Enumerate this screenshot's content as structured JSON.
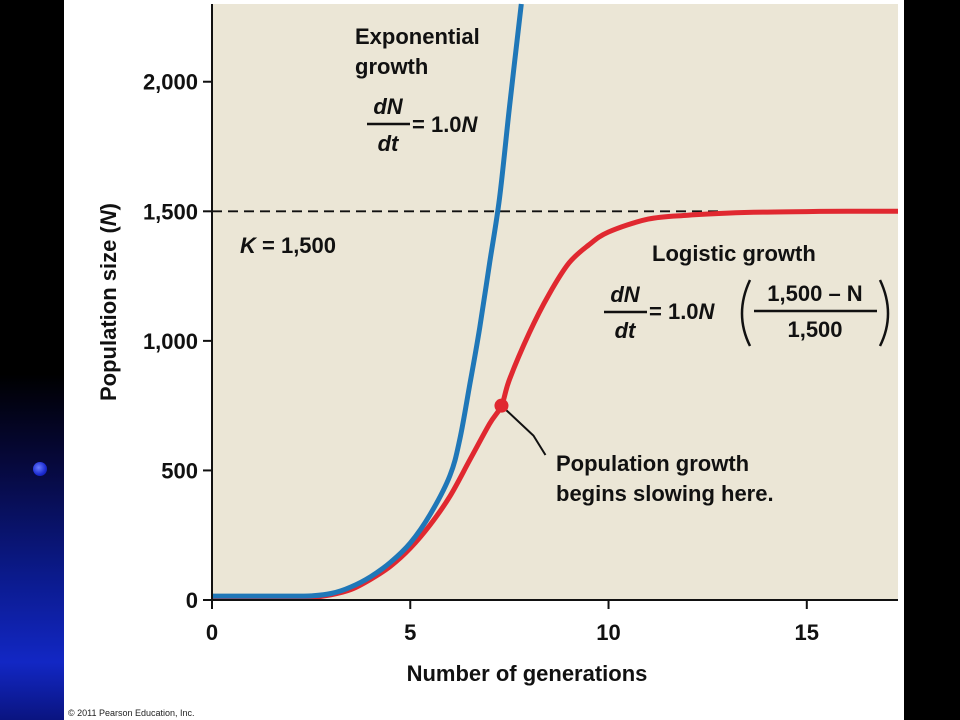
{
  "chart_data": {
    "type": "line",
    "xlabel": "Number of generations",
    "ylabel_prefix": "Population size (",
    "ylabel_var": "N",
    "ylabel_suffix": ")",
    "xlim": [
      0,
      17.3
    ],
    "ylim": [
      0,
      2300
    ],
    "x_ticks": [
      0,
      5,
      10,
      15
    ],
    "x_tick_labels": [
      "0",
      "5",
      "10",
      "15"
    ],
    "y_ticks": [
      0,
      500,
      1000,
      1500,
      2000
    ],
    "y_tick_labels": [
      "0",
      "500",
      "1,000",
      "1,500",
      "2,000"
    ],
    "grid": false,
    "series": [
      {
        "name": "Exponential growth",
        "color": "#1f77b8",
        "x": [
          0,
          1,
          2,
          2.5,
          3,
          3.5,
          4,
          4.5,
          5,
          5.5,
          6,
          6.25,
          6.5,
          6.75,
          7,
          7.25,
          7.5,
          7.8
        ],
        "y": [
          15,
          15,
          15,
          16,
          25,
          50,
          90,
          145,
          220,
          330,
          480,
          620,
          830,
          1050,
          1300,
          1550,
          1900,
          2300
        ]
      },
      {
        "name": "Logistic growth",
        "color": "#e02830",
        "x": [
          0,
          1,
          2,
          2.5,
          3,
          3.5,
          4,
          4.5,
          5,
          5.5,
          6,
          6.5,
          7,
          7.3,
          7.5,
          8,
          8.5,
          9,
          9.5,
          10,
          11,
          12,
          13,
          14,
          15,
          16,
          17.3
        ],
        "y": [
          10,
          10,
          10,
          10,
          20,
          40,
          80,
          130,
          200,
          290,
          400,
          540,
          680,
          750,
          850,
          1030,
          1180,
          1300,
          1370,
          1420,
          1470,
          1485,
          1493,
          1497,
          1499,
          1500,
          1500
        ]
      }
    ],
    "carrying_capacity": {
      "value": 1500,
      "label_var": "K",
      "label_rest": " = 1,500"
    },
    "marked_point": {
      "x": 7.3,
      "y": 750,
      "color": "#e02830",
      "annotation": [
        "Population growth",
        "begins slowing here."
      ]
    },
    "exponential_label": {
      "title": [
        "Exponential",
        "growth"
      ],
      "frac_top": "dN",
      "frac_bottom": "dt",
      "rhs_text": " = 1.0",
      "rhs_var": "N"
    },
    "logistic_label": {
      "title": "Logistic growth",
      "frac_top": "dN",
      "frac_bottom": "dt",
      "rhs_text": " = 1.0",
      "rhs_var": "N",
      "inner_top": "1,500 – N",
      "inner_bottom": "1,500"
    },
    "colors": {
      "plot_background": "#ebe6d6",
      "exponential": "#1f77b8",
      "logistic": "#e02830"
    }
  },
  "footer": {
    "copyright": "© 2011 Pearson Education, Inc."
  }
}
